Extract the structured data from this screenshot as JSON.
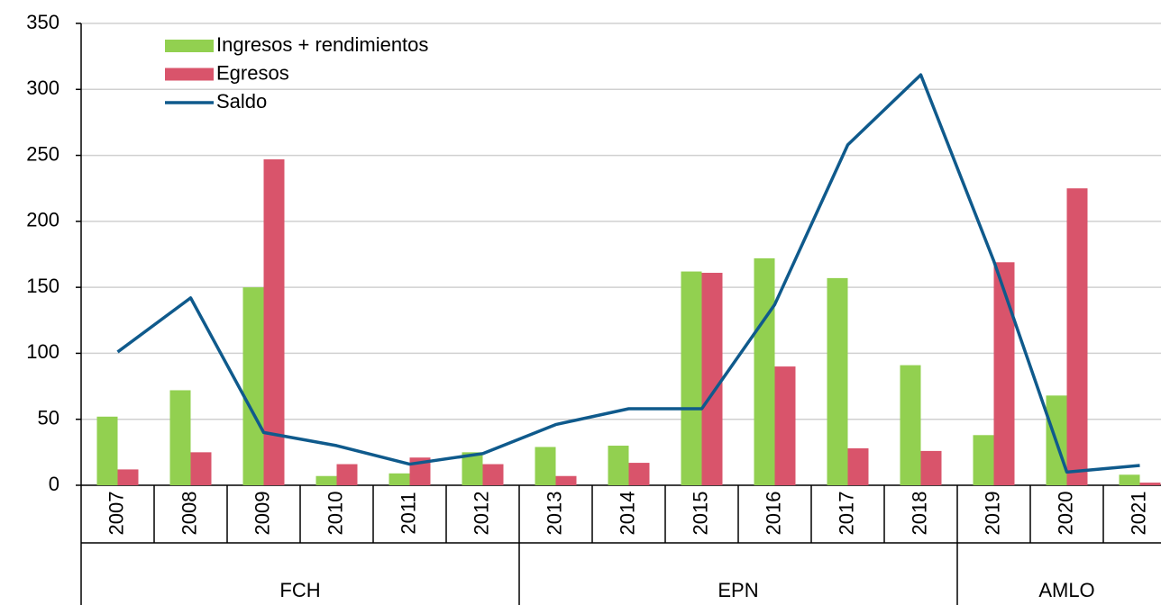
{
  "chart_data": {
    "type": "bar",
    "categories": [
      "2007",
      "2008",
      "2009",
      "2010",
      "2011",
      "2012",
      "2013",
      "2014",
      "2015",
      "2016",
      "2017",
      "2018",
      "2019",
      "2020",
      "2021"
    ],
    "groups": [
      {
        "name": "FCH",
        "size": 6
      },
      {
        "name": "EPN",
        "size": 6
      },
      {
        "name": "AMLO",
        "size": 3
      }
    ],
    "series": [
      {
        "name": "Ingresos + rendimientos",
        "type": "bar",
        "color": "#92d050",
        "values": [
          52,
          72,
          150,
          7,
          9,
          25,
          29,
          30,
          162,
          172,
          157,
          91,
          38,
          68,
          8
        ]
      },
      {
        "name": "Egresos",
        "type": "bar",
        "color": "#d9546b",
        "values": [
          12,
          25,
          247,
          16,
          21,
          16,
          7,
          17,
          161,
          90,
          28,
          26,
          169,
          225,
          2
        ]
      },
      {
        "name": "Saldo",
        "type": "line",
        "color": "#0f5a8c",
        "values": [
          101,
          142,
          40,
          30,
          16,
          24,
          46,
          58,
          58,
          137,
          258,
          311,
          170,
          10,
          15
        ]
      }
    ],
    "ylim": [
      0,
      350
    ],
    "yticks": [
      0,
      50,
      100,
      150,
      200,
      250,
      300,
      350
    ],
    "grid": true,
    "legend": "top-left"
  }
}
